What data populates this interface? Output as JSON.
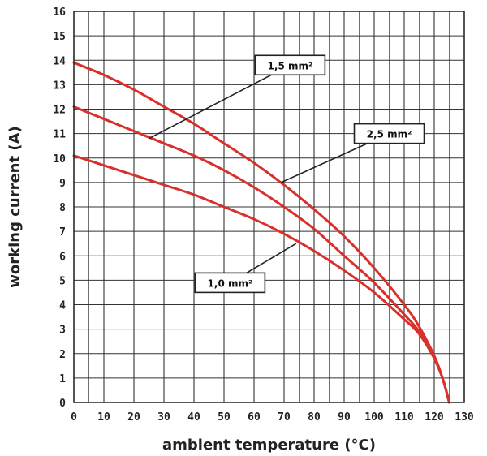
{
  "chart_data": {
    "type": "line",
    "xlabel": "ambient temperature (°C)",
    "ylabel": "working current (A)",
    "xlim": [
      0,
      130
    ],
    "ylim": [
      0,
      16
    ],
    "x_ticks": [
      "0",
      "10",
      "20",
      "30",
      "40",
      "50",
      "60",
      "70",
      "80",
      "90",
      "100",
      "110",
      "120",
      "130"
    ],
    "y_ticks": [
      "0",
      "1",
      "2",
      "3",
      "4",
      "5",
      "6",
      "7",
      "8",
      "9",
      "10",
      "11",
      "12",
      "13",
      "14",
      "15",
      "16"
    ],
    "grid": true,
    "line_color": "#d9302c",
    "series": [
      {
        "name": "1,5 mm²",
        "x": [
          0,
          10,
          20,
          30,
          40,
          50,
          60,
          70,
          80,
          90,
          100,
          110,
          115,
          120,
          123,
          125
        ],
        "y": [
          13.9,
          13.4,
          12.8,
          12.1,
          11.4,
          10.6,
          9.8,
          8.9,
          7.9,
          6.8,
          5.5,
          4.0,
          3.1,
          1.9,
          0.9,
          0
        ]
      },
      {
        "name": "2,5 mm²",
        "x": [
          0,
          10,
          20,
          30,
          40,
          50,
          60,
          70,
          80,
          90,
          100,
          110,
          115,
          120,
          123,
          125
        ],
        "y": [
          12.1,
          11.6,
          11.1,
          10.6,
          10.1,
          9.5,
          8.8,
          8.0,
          7.1,
          6.0,
          4.9,
          3.6,
          2.9,
          1.9,
          0.9,
          0
        ]
      },
      {
        "name": "1,0 mm²",
        "x": [
          0,
          10,
          20,
          30,
          40,
          50,
          60,
          70,
          80,
          90,
          100,
          110,
          115,
          120,
          123,
          125
        ],
        "y": [
          10.1,
          9.7,
          9.3,
          8.9,
          8.5,
          8.0,
          7.5,
          6.9,
          6.2,
          5.4,
          4.5,
          3.4,
          2.8,
          1.8,
          0.9,
          0
        ]
      }
    ],
    "callouts": [
      {
        "label": "1,5 mm²",
        "box_x": 72,
        "box_y": 13.8,
        "line_to_x": 25,
        "line_to_y": 10.8
      },
      {
        "label": "2,5 mm²",
        "box_x": 105,
        "box_y": 11.0,
        "line_to_x": 69,
        "line_to_y": 9.0
      },
      {
        "label": "1,0 mm²",
        "box_x": 52,
        "box_y": 4.9,
        "line_to_x": 74,
        "line_to_y": 6.5
      }
    ]
  }
}
